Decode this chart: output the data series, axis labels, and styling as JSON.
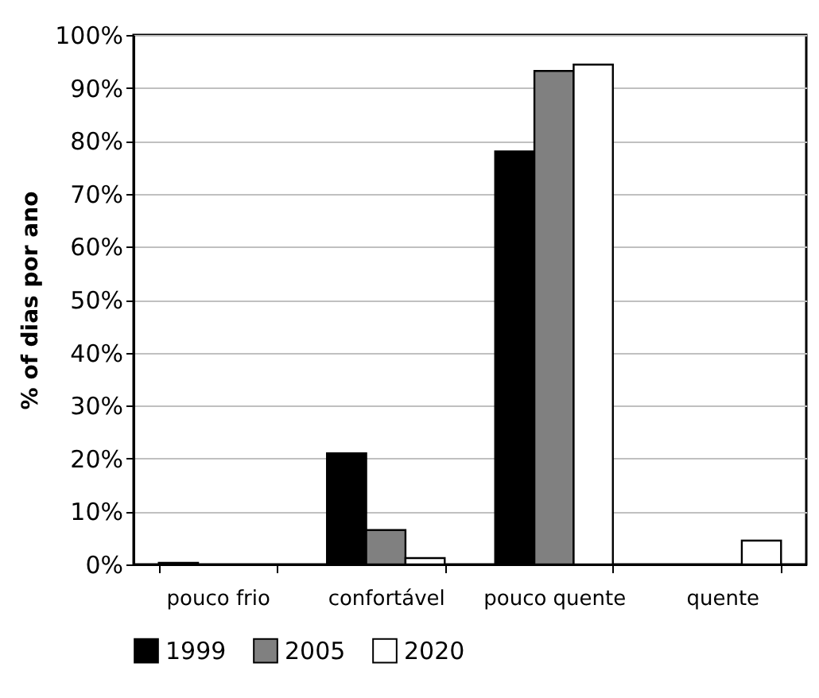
{
  "chart_data": {
    "type": "bar",
    "ylabel": "% of dias por ano",
    "categories": [
      "pouco frio",
      "confortável",
      "pouco quente",
      "quente"
    ],
    "series": [
      {
        "name": "1999",
        "color": "#000000",
        "values": [
          0.3,
          21,
          78,
          0
        ]
      },
      {
        "name": "2005",
        "color": "#808080",
        "values": [
          0,
          6.5,
          93.2,
          0
        ]
      },
      {
        "name": "2020",
        "color": "#ffffff",
        "values": [
          0,
          1.2,
          94.4,
          4.5
        ]
      }
    ],
    "ylim": [
      0,
      100
    ],
    "yticks": [
      {
        "value": 0,
        "label": "0%"
      },
      {
        "value": 10,
        "label": "10%"
      },
      {
        "value": 20,
        "label": "20%"
      },
      {
        "value": 30,
        "label": "30%"
      },
      {
        "value": 40,
        "label": "40%"
      },
      {
        "value": 50,
        "label": "50%"
      },
      {
        "value": 60,
        "label": "60%"
      },
      {
        "value": 70,
        "label": "70%"
      },
      {
        "value": 80,
        "label": "80%"
      },
      {
        "value": 90,
        "label": "90%"
      },
      {
        "value": 100,
        "label": "100%"
      }
    ],
    "grid": "y",
    "legend": "bottom"
  }
}
